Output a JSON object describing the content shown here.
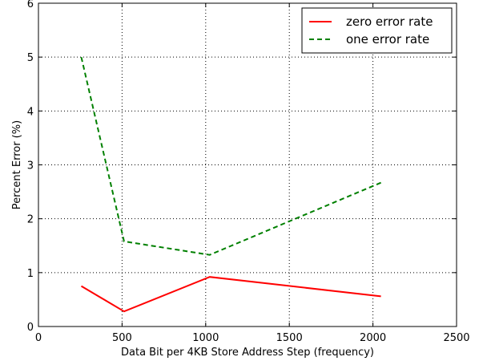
{
  "chart_data": {
    "type": "line",
    "title": "",
    "xlabel": "Data Bit per 4KB Store Address Step (frequency)",
    "ylabel": "Percent Error (%)",
    "xlim": [
      0,
      2500
    ],
    "ylim": [
      0,
      6
    ],
    "xticks": [
      "0",
      "500",
      "1000",
      "1500",
      "2000",
      "2500"
    ],
    "yticks": [
      "0",
      "1",
      "2",
      "3",
      "4",
      "5",
      "6"
    ],
    "grid": true,
    "legend_position": "top-right",
    "series": [
      {
        "name": "zero error rate",
        "color": "#ff0000",
        "style": "solid",
        "x": [
          256,
          512,
          1024,
          2048
        ],
        "y": [
          0.75,
          0.28,
          0.92,
          0.56
        ]
      },
      {
        "name": "one error rate",
        "color": "#008000",
        "style": "dashed",
        "x": [
          256,
          512,
          1024,
          2048
        ],
        "y": [
          5.0,
          1.58,
          1.33,
          2.67
        ]
      }
    ]
  }
}
